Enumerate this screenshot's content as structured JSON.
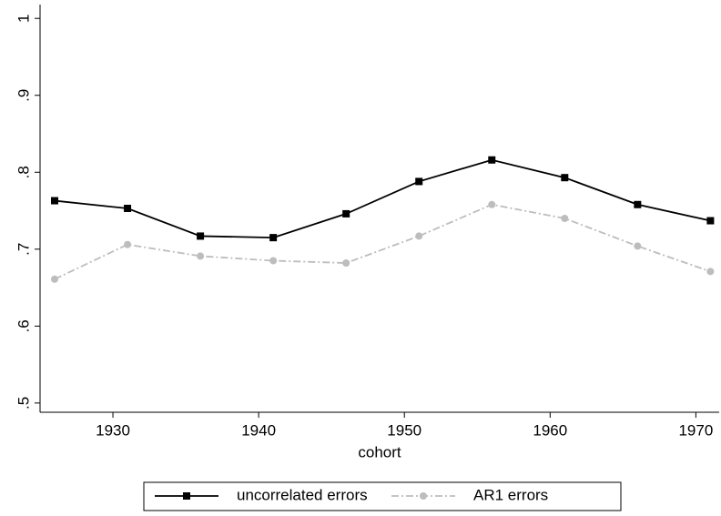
{
  "chart_data": {
    "type": "line",
    "x_label": "cohort",
    "x": [
      1926,
      1931,
      1936,
      1941,
      1946,
      1951,
      1956,
      1961,
      1966,
      1971
    ],
    "series": [
      {
        "name": "uncorrelated errors",
        "color": "#000000",
        "marker": "square",
        "values": [
          0.763,
          0.753,
          0.717,
          0.715,
          0.746,
          0.788,
          0.816,
          0.793,
          0.758,
          0.737
        ]
      },
      {
        "name": "AR1 errors",
        "color": "#bdbdbd",
        "marker": "circle",
        "values": [
          0.661,
          0.706,
          0.691,
          0.685,
          0.682,
          0.717,
          0.758,
          0.74,
          0.704,
          0.671
        ]
      }
    ],
    "xlim": [
      1925,
      1971.6
    ],
    "xticks": [
      1930,
      1940,
      1950,
      1960,
      1970
    ],
    "ylim": [
      0.488,
      1.018
    ],
    "yticks": [
      {
        "value": 0.5,
        "label": ".5"
      },
      {
        "value": 0.6,
        "label": ".6"
      },
      {
        "value": 0.7,
        "label": ".7"
      },
      {
        "value": 0.8,
        "label": ".8"
      },
      {
        "value": 0.9,
        "label": ".9"
      },
      {
        "value": 1,
        "label": "1"
      }
    ],
    "legend": "bottom"
  }
}
